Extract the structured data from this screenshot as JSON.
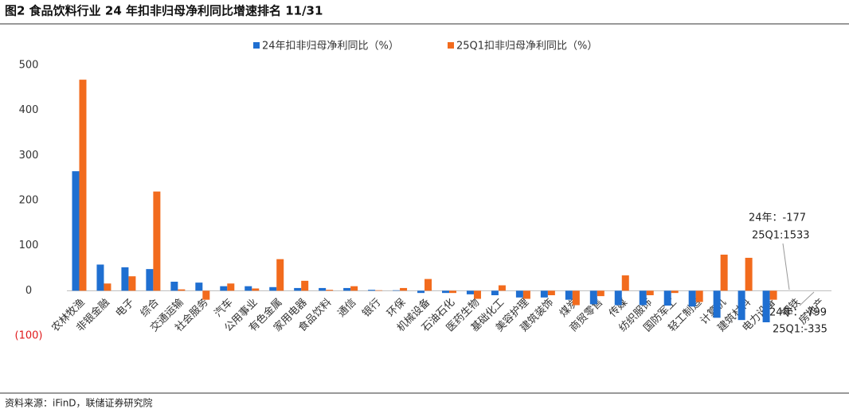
{
  "chart_data": {
    "type": "bar",
    "title": "图2  食品饮料行业 24 年扣非归母净利同比增速排名 11/31",
    "source": "资料来源：iFinD，联储证券研究院",
    "categories": [
      "农林牧渔",
      "非银金融",
      "电子",
      "综合",
      "交通运输",
      "社会服务",
      "汽车",
      "公用事业",
      "有色金属",
      "家用电器",
      "食品饮料",
      "通信",
      "银行",
      "环保",
      "机械设备",
      "石油石化",
      "医药生物",
      "基础化工",
      "美容护理",
      "建筑装饰",
      "煤炭",
      "商贸零售",
      "传媒",
      "纺织服饰",
      "国防军工",
      "轻工制造",
      "计算机",
      "建筑材料",
      "电力设备",
      "钢铁",
      "房地产"
    ],
    "series": [
      {
        "name": "24年扣非归母净利同比（%）",
        "color": "#1f6fd1",
        "values": [
          265,
          58,
          52,
          48,
          20,
          18,
          10,
          10,
          8,
          6,
          6,
          6,
          2,
          1,
          -5,
          -5,
          -8,
          -10,
          -15,
          -15,
          -20,
          -30,
          -32,
          -32,
          -33,
          -35,
          -60,
          -65,
          -70,
          null,
          null
        ]
      },
      {
        "name": "25Q1扣非归母净利同比（%）",
        "color": "#f26b1d",
        "values": [
          468,
          16,
          32,
          220,
          3,
          -20,
          16,
          5,
          70,
          22,
          2,
          10,
          1,
          6,
          26,
          -5,
          -18,
          12,
          -18,
          -10,
          -32,
          -12,
          34,
          -10,
          -5,
          -25,
          80,
          73,
          -20,
          null,
          null
        ]
      }
    ],
    "annotations": [
      "24年：-177",
      "25Q1:1533",
      "24年：-799",
      "25Q1:-335"
    ],
    "ylim": [
      -100,
      500
    ],
    "yticks": [
      {
        "value": -100,
        "label": "(100)",
        "color": "#e0191b"
      },
      0,
      100,
      200,
      300,
      400,
      500
    ]
  }
}
